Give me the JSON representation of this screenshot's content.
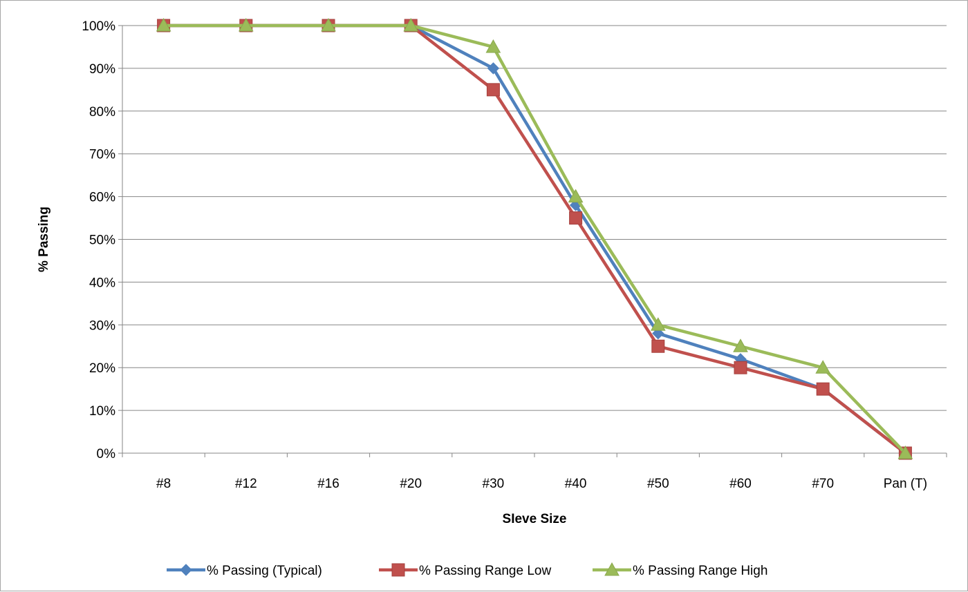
{
  "chart_data": {
    "type": "line",
    "title": "",
    "xlabel": "SIeve Size",
    "ylabel": "% Passing",
    "categories": [
      "#8",
      "#12",
      "#16",
      "#20",
      "#30",
      "#40",
      "#50",
      "#60",
      "#70",
      "Pan (T)"
    ],
    "ylim": [
      0,
      100
    ],
    "y_ticks": [
      0,
      10,
      20,
      30,
      40,
      50,
      60,
      70,
      80,
      90,
      100
    ],
    "y_tick_labels": [
      "0%",
      "10%",
      "20%",
      "30%",
      "40%",
      "50%",
      "60%",
      "70%",
      "80%",
      "90%",
      "100%"
    ],
    "grid": true,
    "legend_position": "bottom",
    "series": [
      {
        "name": "% Passing (Typical)",
        "values": [
          100,
          100,
          100,
          100,
          90,
          58,
          28,
          22,
          15,
          0
        ],
        "color": "#4f81bd",
        "marker": "diamond"
      },
      {
        "name": "% Passing Range Low",
        "values": [
          100,
          100,
          100,
          100,
          85,
          55,
          25,
          20,
          15,
          0
        ],
        "color": "#c0504d",
        "marker": "square"
      },
      {
        "name": "% Passing Range High",
        "values": [
          100,
          100,
          100,
          100,
          95,
          60,
          30,
          25,
          20,
          0
        ],
        "color": "#9bbb59",
        "marker": "triangle"
      }
    ]
  }
}
